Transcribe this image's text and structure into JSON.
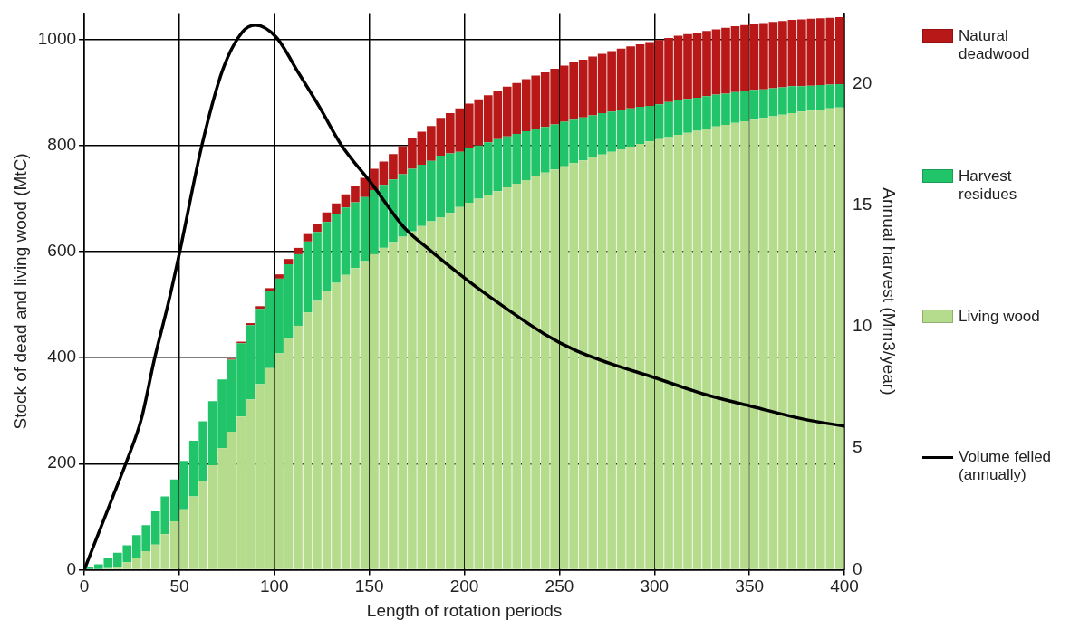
{
  "chart_data": {
    "type": "bar",
    "xlabel": "Length of rotation periods",
    "ylabel": "Stock of dead and living wood (MtC)",
    "y2label": "Annual harvest (Mm3/year)",
    "x": [
      2.5,
      7.5,
      12.5,
      17.5,
      22.5,
      27.5,
      32.5,
      37.5,
      42.5,
      47.5,
      52.5,
      57.5,
      62.5,
      67.5,
      72.5,
      77.5,
      82.5,
      87.5,
      92.5,
      97.5,
      102.5,
      107.5,
      112.5,
      117.5,
      122.5,
      127.5,
      132.5,
      137.5,
      142.5,
      147.5,
      152.5,
      157.5,
      162.5,
      167.5,
      172.5,
      177.5,
      182.5,
      187.5,
      192.5,
      197.5,
      202.5,
      207.5,
      212.5,
      217.5,
      222.5,
      227.5,
      232.5,
      237.5,
      242.5,
      247.5,
      252.5,
      257.5,
      262.5,
      267.5,
      272.5,
      277.5,
      282.5,
      287.5,
      292.5,
      297.5,
      302.5,
      307.5,
      312.5,
      317.5,
      322.5,
      327.5,
      332.5,
      337.5,
      342.5,
      347.5,
      352.5,
      357.5,
      362.5,
      367.5,
      372.5,
      377.5,
      382.5,
      387.5,
      392.5,
      397.5
    ],
    "stacked": true,
    "series": [
      {
        "name": "Living wood",
        "color": "#b5dc8c",
        "values": [
          0,
          1,
          3,
          6,
          14,
          23,
          35,
          47,
          67,
          91,
          114,
          138,
          168,
          197,
          229,
          260,
          289,
          321,
          350,
          380,
          408,
          437,
          460,
          485,
          507,
          525,
          541,
          556,
          569,
          582,
          595,
          607,
          618,
          628,
          638,
          648,
          657,
          665,
          673,
          684,
          692,
          700,
          707,
          714,
          721,
          728,
          735,
          742,
          749,
          755,
          761,
          767,
          772,
          778,
          783,
          788,
          793,
          798,
          803,
          808,
          812,
          816,
          820,
          824,
          828,
          832,
          836,
          839,
          843,
          846,
          849,
          852,
          855,
          858,
          861,
          864,
          866,
          868,
          870,
          872
        ]
      },
      {
        "name": "Harvest residues",
        "color": "#22c46a",
        "values": [
          4,
          9,
          18,
          26,
          32,
          42,
          49,
          63,
          71,
          79,
          91,
          105,
          112,
          121,
          130,
          136,
          138,
          140,
          142,
          145,
          141,
          139,
          135,
          134,
          130,
          131,
          129,
          127,
          124,
          121,
          121,
          119,
          118,
          118,
          118,
          116,
          114,
          116,
          112,
          104,
          103,
          100,
          99,
          98,
          96,
          94,
          92,
          90,
          86,
          85,
          84,
          82,
          81,
          79,
          78,
          76,
          75,
          72,
          70,
          67,
          66,
          66,
          65,
          64,
          62,
          61,
          60,
          59,
          58,
          57,
          56,
          54,
          53,
          52,
          51,
          48,
          47,
          46,
          45,
          44
        ]
      },
      {
        "name": "Natural deadwood",
        "color": "#b81818",
        "values": [
          0,
          0,
          0,
          0,
          0,
          0,
          0,
          0,
          0,
          0,
          0,
          0,
          0,
          0,
          0,
          2,
          3,
          4,
          5,
          6,
          8,
          10,
          12,
          14,
          16,
          18,
          21,
          25,
          30,
          36,
          40,
          44,
          48,
          53,
          58,
          62,
          66,
          71,
          76,
          82,
          84,
          87,
          89,
          91,
          94,
          96,
          98,
          100,
          103,
          105,
          106,
          108,
          109,
          111,
          112,
          114,
          115,
          117,
          118,
          120,
          121,
          121,
          122,
          122,
          123,
          123,
          123,
          124,
          124,
          124,
          124,
          125,
          125,
          125,
          125,
          126,
          126,
          126,
          126,
          126
        ]
      },
      {
        "name": "Volume felled (annually)",
        "type": "line",
        "axis": "y2",
        "color": "#000000",
        "x": [
          0,
          8,
          15,
          22,
          30,
          37,
          44,
          50,
          62,
          73,
          83,
          90,
          101,
          113,
          124,
          135,
          152,
          168,
          181,
          200,
          212,
          242,
          259,
          276,
          300,
          327,
          352,
          378,
          400
        ],
        "values": [
          0,
          1.6,
          3.0,
          4.4,
          6.2,
          8.7,
          10.9,
          13.0,
          17.5,
          20.6,
          22.1,
          22.4,
          21.9,
          20.4,
          19.0,
          17.5,
          15.8,
          14.1,
          13.2,
          12.0,
          11.3,
          9.7,
          9.0,
          8.5,
          7.9,
          7.2,
          6.7,
          6.2,
          5.9
        ]
      }
    ],
    "xlim": [
      0,
      400
    ],
    "xticks": [
      0,
      50,
      100,
      150,
      200,
      250,
      300,
      350,
      400
    ],
    "ylim": [
      0,
      1050
    ],
    "yticks": [
      0,
      200,
      400,
      600,
      800,
      1000
    ],
    "y2lim": [
      0,
      22.9
    ],
    "y2ticks": [
      0,
      5,
      10,
      15,
      20
    ],
    "grid": true,
    "legend": "right"
  }
}
